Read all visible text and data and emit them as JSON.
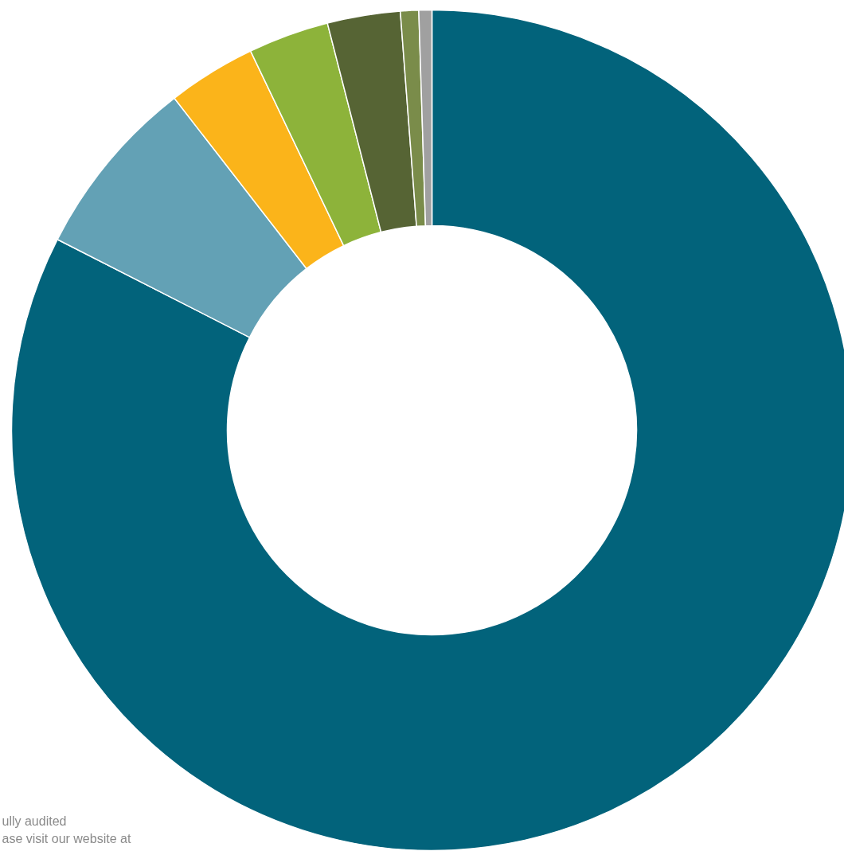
{
  "chart_data": {
    "type": "donut",
    "categories": [
      null,
      null,
      null,
      null,
      null,
      null,
      null
    ],
    "values": [
      82.5,
      7.0,
      3.4,
      3.1,
      2.8,
      0.7,
      0.5
    ],
    "colors": [
      "#02637b",
      "#63a1b5",
      "#fbb41a",
      "#8db33a",
      "#566434",
      "#7a8c4a",
      "#a0a0a0"
    ],
    "annotations": [
      "ully audited",
      "ase visit our website at"
    ]
  }
}
